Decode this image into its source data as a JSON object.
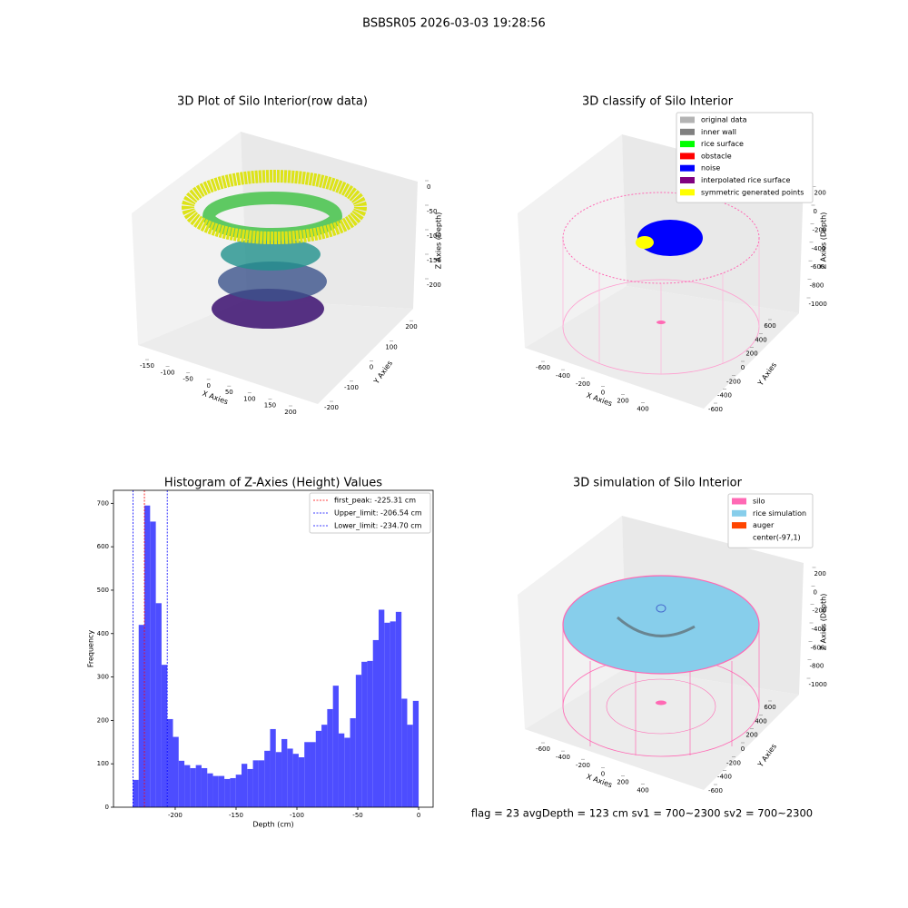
{
  "title": "BSBSR05 2026-03-03 19:28:56",
  "chart_data": [
    {
      "type": "scatter3d",
      "title": "3D Plot of Silo Interior(row data)",
      "x_label": "X Axies",
      "y_label": "Y Axies",
      "z_label": "Z Axies (Depth)",
      "xlim": [
        -175,
        235
      ],
      "xticks": [
        -150,
        -100,
        -50,
        0,
        50,
        100,
        150,
        200
      ],
      "ylim": [
        -230,
        240
      ],
      "yticks": [
        -200,
        -100,
        0,
        100,
        200
      ],
      "zlim": [
        -250,
        10
      ],
      "zticks": [
        0,
        -50,
        -100,
        -150,
        -200
      ]
    },
    {
      "type": "scatter3d",
      "title": "3D classify of Silo Interior",
      "x_label": "X Axies",
      "y_label": "Y Axies",
      "z_label": "Z Axies (Depth)",
      "xlim": [
        -700,
        500
      ],
      "xticks": [
        -600,
        -400,
        -200,
        0,
        200,
        400
      ],
      "ylim": [
        -700,
        700
      ],
      "yticks": [
        -600,
        -400,
        -200,
        0,
        200,
        400,
        600
      ],
      "zlim": [
        -1100,
        300
      ],
      "zticks": [
        200,
        0,
        -200,
        -400,
        -600,
        -800,
        -1000
      ],
      "legend": [
        {
          "name": "original data",
          "color": "#b3b3b3"
        },
        {
          "name": "inner wall",
          "color": "#808080"
        },
        {
          "name": "rice surface",
          "color": "#00ff00"
        },
        {
          "name": "obstacle",
          "color": "#ff0000"
        },
        {
          "name": "noise",
          "color": "#0000ff"
        },
        {
          "name": "interpolated rice surface",
          "color": "#800080"
        },
        {
          "name": "symmetric generated points",
          "color": "#ffff00"
        }
      ]
    },
    {
      "type": "histogram",
      "title": "Histogram of Z-Axies (Height) Values",
      "x_label": "Depth (cm)",
      "y_label": "Frequency",
      "color": "#4d4dff",
      "bins": [
        -234.7,
        -230.01,
        -225.31,
        -220.62,
        -215.92,
        -211.23,
        -206.54,
        -201.84,
        -197.15,
        -192.45,
        -187.76,
        -183.07,
        -178.37,
        -173.68,
        -168.98,
        -164.29,
        -159.6,
        -154.9,
        -150.21,
        -145.51,
        -140.82,
        -136.13,
        -131.43,
        -126.74,
        -122.04,
        -117.35,
        -112.66,
        -107.96,
        -103.27,
        -98.57,
        -93.88,
        -89.19,
        -84.49,
        -79.8,
        -75.1,
        -70.41,
        -65.72,
        -61.02,
        -56.33,
        -51.63,
        -46.94,
        -42.25,
        -37.55,
        -32.86,
        -28.16,
        -23.47,
        -18.78,
        -14.08,
        -9.39,
        -4.69,
        0
      ],
      "values": [
        63,
        420,
        695,
        658,
        470,
        328,
        203,
        162,
        107,
        97,
        90,
        97,
        90,
        78,
        72,
        72,
        65,
        67,
        75,
        100,
        88,
        108,
        108,
        130,
        180,
        127,
        157,
        135,
        123,
        115,
        150,
        150,
        176,
        190,
        226,
        280,
        170,
        160,
        205,
        305,
        335,
        337,
        385,
        455,
        425,
        428,
        450,
        250,
        190,
        245
      ],
      "xlim": [
        -250.7,
        11.9
      ],
      "xticks": [
        -200,
        -150,
        -100,
        -50,
        0
      ],
      "ylim": [
        0,
        730
      ],
      "yticks": [
        0,
        100,
        200,
        300,
        400,
        500,
        600,
        700
      ],
      "lines": [
        {
          "name": "first_peak: -225.31 cm",
          "value": -225.31,
          "color": "#ff0000"
        },
        {
          "name": "Upper_limit: -206.54 cm",
          "value": -206.54,
          "color": "#0000ff"
        },
        {
          "name": "Lower_limit: -234.70 cm",
          "value": -234.7,
          "color": "#0000ff"
        }
      ]
    },
    {
      "type": "scatter3d",
      "title": "3D simulation of Silo Interior",
      "x_label": "X Axies",
      "y_label": "Y Axies",
      "z_label": "Z Axies (Depth)",
      "xlim": [
        -700,
        500
      ],
      "xticks": [
        -600,
        -400,
        -200,
        0,
        200,
        400
      ],
      "ylim": [
        -700,
        700
      ],
      "yticks": [
        -600,
        -400,
        -200,
        0,
        200,
        400,
        600
      ],
      "zlim": [
        -1100,
        300
      ],
      "zticks": [
        200,
        0,
        -200,
        -400,
        -600,
        -800,
        -1000
      ],
      "legend": [
        {
          "name": "silo",
          "color": "#ff69b4"
        },
        {
          "name": "rice simulation",
          "color": "#87ceeb"
        },
        {
          "name": "auger",
          "color": "#ff4500"
        },
        {
          "name": "center(-97,1)",
          "color": "#ffffff"
        }
      ],
      "annotation": "flag = 23  avgDepth = 123 cm  sv1 = 700~2300  sv2 = 700~2300"
    }
  ]
}
